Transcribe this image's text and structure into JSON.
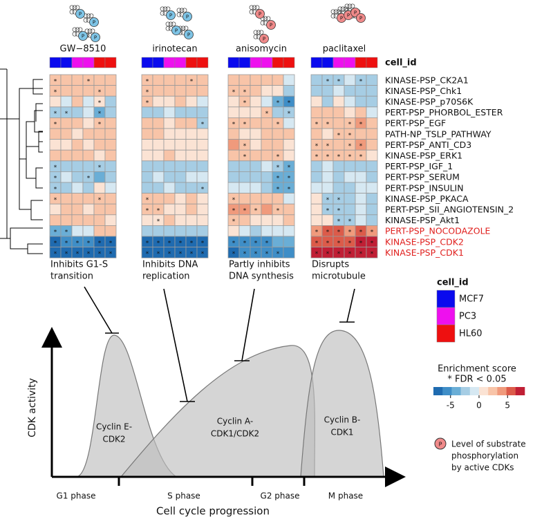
{
  "chart_data": {
    "type": "heatmap",
    "column_cell_lines": [
      "MCF7",
      "MCF7",
      "PC3",
      "PC3",
      "HL60",
      "HL60"
    ],
    "cell_id_label": "cell_id",
    "star_symbol": "*",
    "phospho_symbol": "P",
    "zlim": [
      -8,
      8
    ],
    "colorscale": [
      "#1f6bb0",
      "#3f8ec7",
      "#6aaed6",
      "#a6cde4",
      "#d6e8f2",
      "#fbe3d4",
      "#f8c4a8",
      "#f09a7c",
      "#dc5b4a",
      "#c01f35"
    ],
    "rows": [
      {
        "name": "KINASE-PSP_CK2A1",
        "color": "#111111"
      },
      {
        "name": "KINASE-PSP_Chk1",
        "color": "#111111"
      },
      {
        "name": "KINASE-PSP_p70S6K",
        "color": "#111111"
      },
      {
        "name": "PERT-PSP_PHORBOL_ESTER",
        "color": "#111111"
      },
      {
        "name": "PERT-PSP_EGF",
        "color": "#111111"
      },
      {
        "name": "PATH-NP_TSLP_PATHWAY",
        "color": "#111111"
      },
      {
        "name": "PERT-PSP_ANTI_CD3",
        "color": "#111111"
      },
      {
        "name": "KINASE-PSP_ERK1",
        "color": "#111111"
      },
      {
        "name": "PERT-PSP_IGF_1",
        "color": "#111111"
      },
      {
        "name": "PERT-PSP_SERUM",
        "color": "#111111"
      },
      {
        "name": "PERT-PSP_INSULIN",
        "color": "#111111"
      },
      {
        "name": "KINASE-PSP_PKACA",
        "color": "#111111"
      },
      {
        "name": "PERT-PSP_SII_ANGIOTENSIN_2",
        "color": "#111111"
      },
      {
        "name": "KINASE-PSP_Akt1",
        "color": "#111111"
      },
      {
        "name": "PERT-PSP_NOCODAZOLE",
        "color": "#e0201e"
      },
      {
        "name": "KINASE-PSP_CDK2",
        "color": "#e0201e"
      },
      {
        "name": "KINASE-PSP_CDK1",
        "color": "#e0201e"
      }
    ],
    "panels": [
      {
        "name": "GW−8510",
        "annotation": [
          "Inhibits G1-S",
          "transition"
        ],
        "icon_color": "#7ec4e6",
        "values": [
          [
            3,
            3,
            2,
            3,
            3,
            3
          ],
          [
            3,
            2,
            3,
            2,
            3,
            3
          ],
          [
            1,
            -1,
            2,
            -1,
            1,
            -2
          ],
          [
            -3,
            -3,
            -2,
            -1,
            -4,
            -2
          ],
          [
            2,
            2,
            3,
            1,
            3,
            3
          ],
          [
            2,
            2,
            1,
            2,
            2,
            2
          ],
          [
            1,
            1,
            2,
            1,
            2,
            2
          ],
          [
            2,
            2,
            2,
            3,
            1,
            2
          ],
          [
            -3,
            -2,
            -2,
            -2,
            -3,
            -2
          ],
          [
            -3,
            -1,
            -2,
            -2,
            -4,
            -2
          ],
          [
            -3,
            -2,
            -1,
            -3,
            0,
            -1
          ],
          [
            3,
            2,
            3,
            2,
            3,
            2
          ],
          [
            1,
            2,
            2,
            1,
            2,
            2
          ],
          [
            2,
            2,
            3,
            2,
            2,
            1
          ],
          [
            -4,
            -4,
            -1,
            -1,
            2,
            2
          ],
          [
            -7,
            -6,
            -6,
            -6,
            -7,
            -7
          ],
          [
            -7,
            -7,
            -7,
            -7,
            -7,
            -7
          ]
        ],
        "stars": [
          [
            0,
            0
          ],
          [
            0,
            3
          ],
          [
            1,
            0
          ],
          [
            1,
            4
          ],
          [
            2,
            4
          ],
          [
            3,
            0
          ],
          [
            3,
            1
          ],
          [
            3,
            4
          ],
          [
            4,
            0
          ],
          [
            4,
            4
          ],
          [
            8,
            0
          ],
          [
            8,
            4
          ],
          [
            9,
            0
          ],
          [
            9,
            3
          ],
          [
            10,
            0
          ],
          [
            11,
            0
          ],
          [
            11,
            4
          ],
          [
            14,
            0
          ],
          [
            14,
            1
          ],
          [
            15,
            0
          ],
          [
            15,
            1
          ],
          [
            15,
            2
          ],
          [
            15,
            3
          ],
          [
            15,
            4
          ],
          [
            15,
            5
          ],
          [
            16,
            0
          ],
          [
            16,
            1
          ],
          [
            16,
            2
          ],
          [
            16,
            3
          ],
          [
            16,
            4
          ],
          [
            16,
            5
          ]
        ]
      },
      {
        "name": "irinotecan",
        "annotation": [
          "Inhibits DNA",
          "replication"
        ],
        "icon_color": "#7ec4e6",
        "values": [
          [
            3,
            2,
            2,
            3,
            3,
            2
          ],
          [
            3,
            2,
            2,
            2,
            2,
            2
          ],
          [
            2,
            1,
            1,
            2,
            1,
            -1
          ],
          [
            -2,
            -2,
            -1,
            -2,
            -2,
            -3
          ],
          [
            2,
            2,
            1,
            2,
            2,
            -2
          ],
          [
            2,
            2,
            1,
            1,
            1,
            1
          ],
          [
            0,
            1,
            1,
            0,
            1,
            1
          ],
          [
            0,
            1,
            2,
            1,
            1,
            0
          ],
          [
            -3,
            -2,
            -2,
            -3,
            -3,
            -3
          ],
          [
            -2,
            -1,
            -2,
            -2,
            -1,
            -1
          ],
          [
            -2,
            -2,
            -1,
            -2,
            -3,
            -2
          ],
          [
            2,
            3,
            2,
            1,
            2,
            1
          ],
          [
            2,
            3,
            1,
            1,
            2,
            1
          ],
          [
            1,
            1,
            2,
            1,
            1,
            1
          ],
          [
            -3,
            -3,
            -2,
            -2,
            -3,
            -3
          ],
          [
            -7,
            -7,
            -7,
            -7,
            -7,
            -7
          ],
          [
            -7,
            -7,
            -7,
            -7,
            -7,
            -7
          ]
        ],
        "stars": [
          [
            0,
            0
          ],
          [
            0,
            4
          ],
          [
            1,
            0
          ],
          [
            2,
            0
          ],
          [
            4,
            5
          ],
          [
            10,
            5
          ],
          [
            11,
            0
          ],
          [
            12,
            0
          ],
          [
            12,
            1
          ],
          [
            13,
            1
          ],
          [
            15,
            0
          ],
          [
            15,
            1
          ],
          [
            15,
            2
          ],
          [
            15,
            3
          ],
          [
            15,
            4
          ],
          [
            15,
            5
          ],
          [
            16,
            0
          ],
          [
            16,
            1
          ],
          [
            16,
            2
          ],
          [
            16,
            3
          ],
          [
            16,
            4
          ],
          [
            16,
            5
          ]
        ]
      },
      {
        "name": "anisomycin",
        "annotation": [
          "Partly inhibits",
          "DNA synthesis"
        ],
        "icon_color": "#f08a8a",
        "values": [
          [
            3,
            3,
            2,
            3,
            3,
            -1
          ],
          [
            3,
            3,
            2,
            1,
            1,
            -2
          ],
          [
            1,
            2,
            1,
            -1,
            -4,
            -6
          ],
          [
            1,
            1,
            1,
            2,
            -2,
            -3
          ],
          [
            3,
            3,
            2,
            2,
            3,
            -1
          ],
          [
            2,
            1,
            1,
            2,
            3,
            2
          ],
          [
            4,
            3,
            1,
            2,
            2,
            1
          ],
          [
            2,
            2,
            2,
            2,
            3,
            1
          ],
          [
            -3,
            -2,
            -2,
            -1,
            -3,
            -4
          ],
          [
            -2,
            -2,
            -2,
            -3,
            -4,
            -4
          ],
          [
            -1,
            -1,
            -1,
            -2,
            -4,
            -4
          ],
          [
            3,
            2,
            2,
            2,
            2,
            -1
          ],
          [
            4,
            4,
            3,
            4,
            2,
            2
          ],
          [
            2,
            2,
            1,
            1,
            1,
            2
          ],
          [
            1,
            -1,
            -2,
            -1,
            -1,
            -1
          ],
          [
            -6,
            -5,
            -5,
            -5,
            -4,
            -4
          ],
          [
            -7,
            -6,
            -6,
            -6,
            -5,
            -5
          ]
        ],
        "stars": [
          [
            1,
            0
          ],
          [
            1,
            1
          ],
          [
            2,
            1
          ],
          [
            2,
            4
          ],
          [
            2,
            5
          ],
          [
            3,
            3
          ],
          [
            3,
            5
          ],
          [
            4,
            0
          ],
          [
            4,
            1
          ],
          [
            4,
            4
          ],
          [
            6,
            1
          ],
          [
            7,
            1
          ],
          [
            7,
            4
          ],
          [
            8,
            4
          ],
          [
            8,
            5
          ],
          [
            9,
            4
          ],
          [
            9,
            5
          ],
          [
            10,
            4
          ],
          [
            10,
            5
          ],
          [
            11,
            0
          ],
          [
            12,
            0
          ],
          [
            12,
            1
          ],
          [
            12,
            2
          ],
          [
            12,
            4
          ],
          [
            13,
            0
          ],
          [
            15,
            0
          ],
          [
            15,
            1
          ],
          [
            15,
            2
          ],
          [
            15,
            3
          ],
          [
            16,
            0
          ],
          [
            16,
            1
          ],
          [
            16,
            2
          ],
          [
            16,
            3
          ],
          [
            16,
            4
          ]
        ]
      },
      {
        "name": "paclitaxel",
        "annotation": [
          "Disrupts",
          "microtubule"
        ],
        "icon_color": "#f08a8a",
        "values": [
          [
            -2,
            -3,
            -3,
            -1,
            -3,
            -2
          ],
          [
            -2,
            -2,
            -1,
            -2,
            -3,
            -2
          ],
          [
            1,
            -2,
            1,
            -1,
            -2,
            -2
          ],
          [
            2,
            2,
            3,
            1,
            2,
            -1
          ],
          [
            3,
            2,
            3,
            2,
            4,
            2
          ],
          [
            2,
            1,
            3,
            3,
            2,
            2
          ],
          [
            3,
            3,
            2,
            3,
            4,
            2
          ],
          [
            3,
            3,
            3,
            3,
            3,
            1
          ],
          [
            -2,
            -1,
            -2,
            -2,
            -2,
            -2
          ],
          [
            -2,
            -1,
            -2,
            -1,
            -1,
            -2
          ],
          [
            -1,
            -1,
            -2,
            -2,
            -1,
            -1
          ],
          [
            1,
            -3,
            -3,
            -2,
            -1,
            -2
          ],
          [
            1,
            -3,
            -3,
            -2,
            -1,
            -2
          ],
          [
            1,
            1,
            -3,
            -3,
            -1,
            -2
          ],
          [
            4,
            5,
            6,
            4,
            5,
            4
          ],
          [
            5,
            6,
            6,
            6,
            7,
            7
          ],
          [
            7,
            7,
            7,
            7,
            7,
            7
          ]
        ],
        "stars": [
          [
            0,
            1
          ],
          [
            0,
            2
          ],
          [
            0,
            4
          ],
          [
            4,
            0
          ],
          [
            4,
            1
          ],
          [
            4,
            3
          ],
          [
            4,
            4
          ],
          [
            5,
            2
          ],
          [
            5,
            3
          ],
          [
            6,
            0
          ],
          [
            6,
            1
          ],
          [
            6,
            3
          ],
          [
            6,
            4
          ],
          [
            7,
            0
          ],
          [
            7,
            1
          ],
          [
            7,
            2
          ],
          [
            7,
            3
          ],
          [
            7,
            4
          ],
          [
            11,
            1
          ],
          [
            11,
            2
          ],
          [
            12,
            1
          ],
          [
            12,
            2
          ],
          [
            13,
            2
          ],
          [
            13,
            3
          ],
          [
            14,
            0
          ],
          [
            14,
            1
          ],
          [
            14,
            2
          ],
          [
            14,
            3
          ],
          [
            14,
            4
          ],
          [
            14,
            5
          ],
          [
            15,
            0
          ],
          [
            15,
            1
          ],
          [
            15,
            2
          ],
          [
            15,
            3
          ],
          [
            15,
            4
          ],
          [
            15,
            5
          ],
          [
            16,
            0
          ],
          [
            16,
            1
          ],
          [
            16,
            2
          ],
          [
            16,
            3
          ],
          [
            16,
            4
          ],
          [
            16,
            5
          ]
        ]
      }
    ],
    "legend_cell_lines": [
      {
        "name": "MCF7",
        "color": "#0a0aee"
      },
      {
        "name": "PC3",
        "color": "#ee10ee"
      },
      {
        "name": "HL60",
        "color": "#ee1010"
      }
    ],
    "legend_title": "Enrichment score",
    "legend_subtitle": "* FDR < 0.05",
    "legend_ticks": [
      -5,
      0,
      5
    ],
    "phospho_legend": [
      "Level of substrate",
      "phosphorylation",
      "by active CDKs"
    ]
  },
  "cycle_diagram": {
    "y_axis_label": "CDK activity",
    "x_axis_label": "Cell cycle progression",
    "phases": [
      "G1 phase",
      "S phase",
      "G2 phase",
      "M phase"
    ],
    "cyclins": [
      [
        "Cyclin E-",
        "CDK2"
      ],
      [
        "Cyclin A-",
        "CDK1/CDK2"
      ],
      [
        "Cyclin B-",
        "CDK1"
      ]
    ]
  }
}
